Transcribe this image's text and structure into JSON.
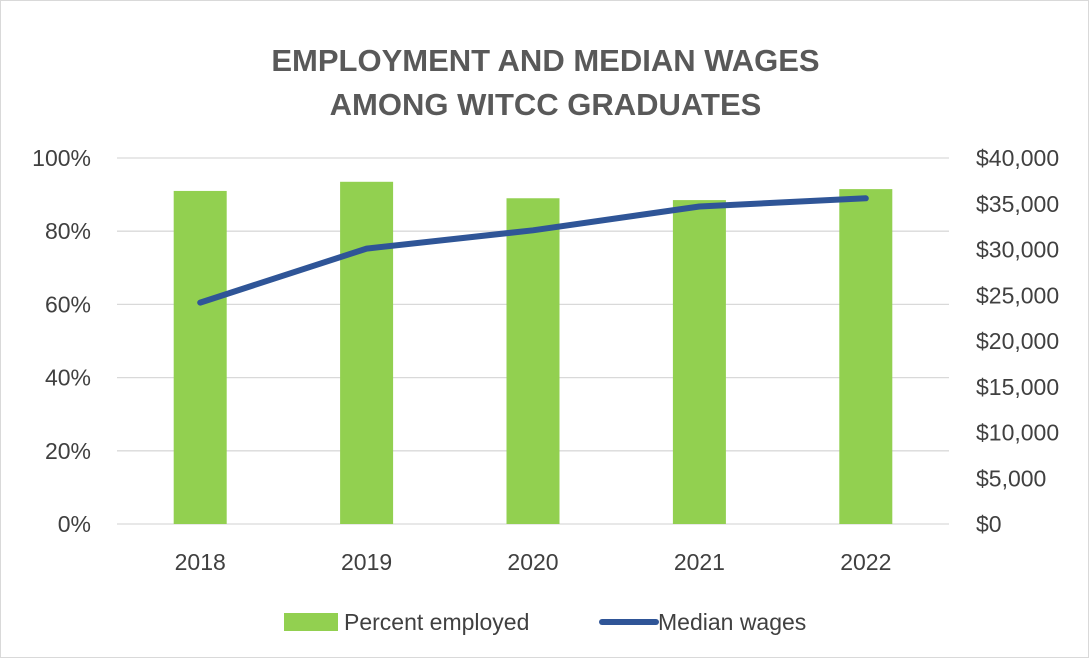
{
  "chart_data": {
    "type": "bar",
    "title_line1": "EMPLOYMENT AND MEDIAN WAGES",
    "title_line2": "AMONG WITCC GRADUATES",
    "categories": [
      "2018",
      "2019",
      "2020",
      "2021",
      "2022"
    ],
    "series": [
      {
        "name": "Percent employed",
        "type": "bar",
        "axis": "left",
        "color": "#92D050",
        "values": [
          91,
          93.5,
          89,
          88.5,
          91.5
        ]
      },
      {
        "name": "Median wages",
        "type": "line",
        "axis": "right",
        "color": "#2F5597",
        "values": [
          24200,
          30100,
          32100,
          34700,
          35600
        ]
      }
    ],
    "y_left": {
      "min": 0,
      "max": 100,
      "ticks": [
        0,
        20,
        40,
        60,
        80,
        100
      ],
      "tick_labels": [
        "0%",
        "20%",
        "40%",
        "60%",
        "80%",
        "100%"
      ]
    },
    "y_right": {
      "min": 0,
      "max": 40000,
      "ticks": [
        0,
        5000,
        10000,
        15000,
        20000,
        25000,
        30000,
        35000,
        40000
      ],
      "tick_labels": [
        "$0",
        "$5,000",
        "$10,000",
        "$15,000",
        "$20,000",
        "$25,000",
        "$30,000",
        "$35,000",
        "$40,000"
      ]
    },
    "grid": true,
    "grid_color": "#d9d9d9",
    "legend_position": "bottom"
  }
}
